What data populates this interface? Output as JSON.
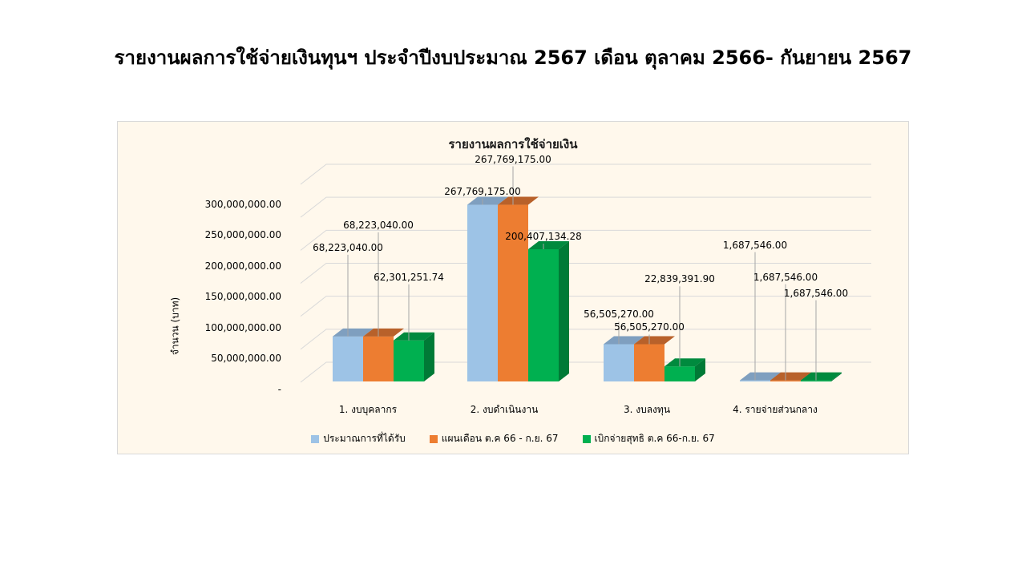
{
  "page": {
    "title": "รายงานผลการใช้จ่ายเงินทุนฯ ประจำปีงบประมาณ 2567 เดือน ตุลาคม 2566- กันยายน 2567"
  },
  "colors": {
    "budget": "#9dc3e6",
    "plan": "#ed7d31",
    "disbursed": "#00b050",
    "background": "#fff8ec"
  },
  "chart_data": {
    "type": "bar",
    "title": "รายงานผลการใช้จ่ายเงิน",
    "xlabel": "",
    "ylabel": "จำนวน (บาท)",
    "ylim": [
      0,
      300000000
    ],
    "yticks": [
      "-",
      "50,000,000.00",
      "100,000,000.00",
      "150,000,000.00",
      "200,000,000.00",
      "250,000,000.00",
      "300,000,000.00"
    ],
    "grid": true,
    "legend_position": "bottom",
    "categories": [
      "1. งบบุคลากร",
      "2. งบดำเนินงาน",
      "3. งบลงทุน",
      "4. รายจ่ายส่วนกลาง"
    ],
    "series": [
      {
        "name": "ประมาณการที่ได้รับ",
        "values": [
          68223040.0,
          267769175.0,
          56505270.0,
          1687546.0
        ],
        "labels": [
          "68,223,040.00",
          "267,769,175.00",
          "56,505,270.00",
          "1,687,546.00"
        ]
      },
      {
        "name": "แผนเดือน ต.ค 66 - ก.ย. 67",
        "values": [
          68223040.0,
          267769175.0,
          56505270.0,
          1687546.0
        ],
        "labels": [
          "68,223,040.00",
          "267,769,175.00",
          "56,505,270.00",
          "1,687,546.00"
        ]
      },
      {
        "name": "เบิกจ่ายสุทธิ ต.ค 66-ก.ย. 67",
        "values": [
          62301251.74,
          200407134.28,
          22839391.9,
          1687546.0
        ],
        "labels": [
          "62,301,251.74",
          "200,407,134.28",
          "22,839,391.90",
          "1,687,546.00"
        ]
      }
    ]
  }
}
